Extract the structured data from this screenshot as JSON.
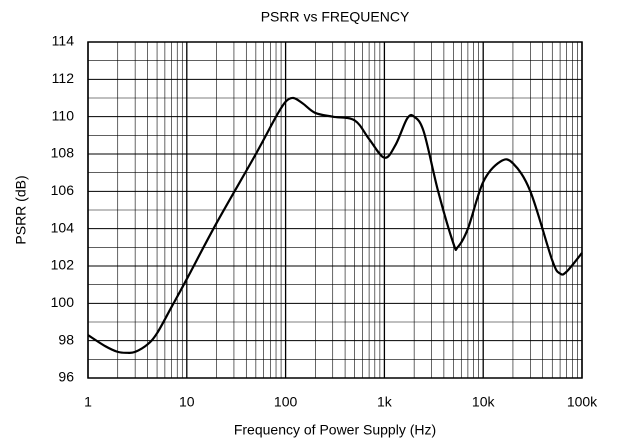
{
  "chart_data": {
    "type": "line",
    "title": "PSRR vs FREQUENCY",
    "x_label": "Frequency of Power Supply (Hz)",
    "y_label": "PSRR (dB)",
    "log_x": true,
    "grid": true,
    "xlim": [
      1,
      100000
    ],
    "xticks": [
      1,
      10,
      100,
      {
        "value": 1000,
        "label": "1k"
      },
      {
        "value": 10000,
        "label": "10k"
      },
      {
        "value": 100000,
        "label": "100k"
      }
    ],
    "ylim": [
      96,
      114
    ],
    "yticks": [
      96,
      98,
      100,
      102,
      104,
      106,
      108,
      110,
      112,
      114
    ],
    "x": [
      1,
      1.5,
      2,
      2.5,
      3,
      4,
      5,
      7,
      10,
      20,
      50,
      80,
      100,
      120,
      150,
      200,
      300,
      500,
      700,
      1000,
      1300,
      1700,
      2000,
      2500,
      3500,
      5000,
      5500,
      7000,
      10000,
      15000,
      20000,
      30000,
      50000,
      60000,
      70000,
      100000
    ],
    "series": [
      {
        "name": "PSRR",
        "color": "#000000",
        "values": [
          98.3,
          97.7,
          97.4,
          97.35,
          97.4,
          97.8,
          98.4,
          99.8,
          101.3,
          104.3,
          108.0,
          110.0,
          110.8,
          111.0,
          110.7,
          110.2,
          110.0,
          109.8,
          108.8,
          107.8,
          108.5,
          109.9,
          110.0,
          109.2,
          106.0,
          103.2,
          103.0,
          104.0,
          106.5,
          107.6,
          107.5,
          106.0,
          102.3,
          101.6,
          101.7,
          102.7
        ]
      }
    ]
  }
}
